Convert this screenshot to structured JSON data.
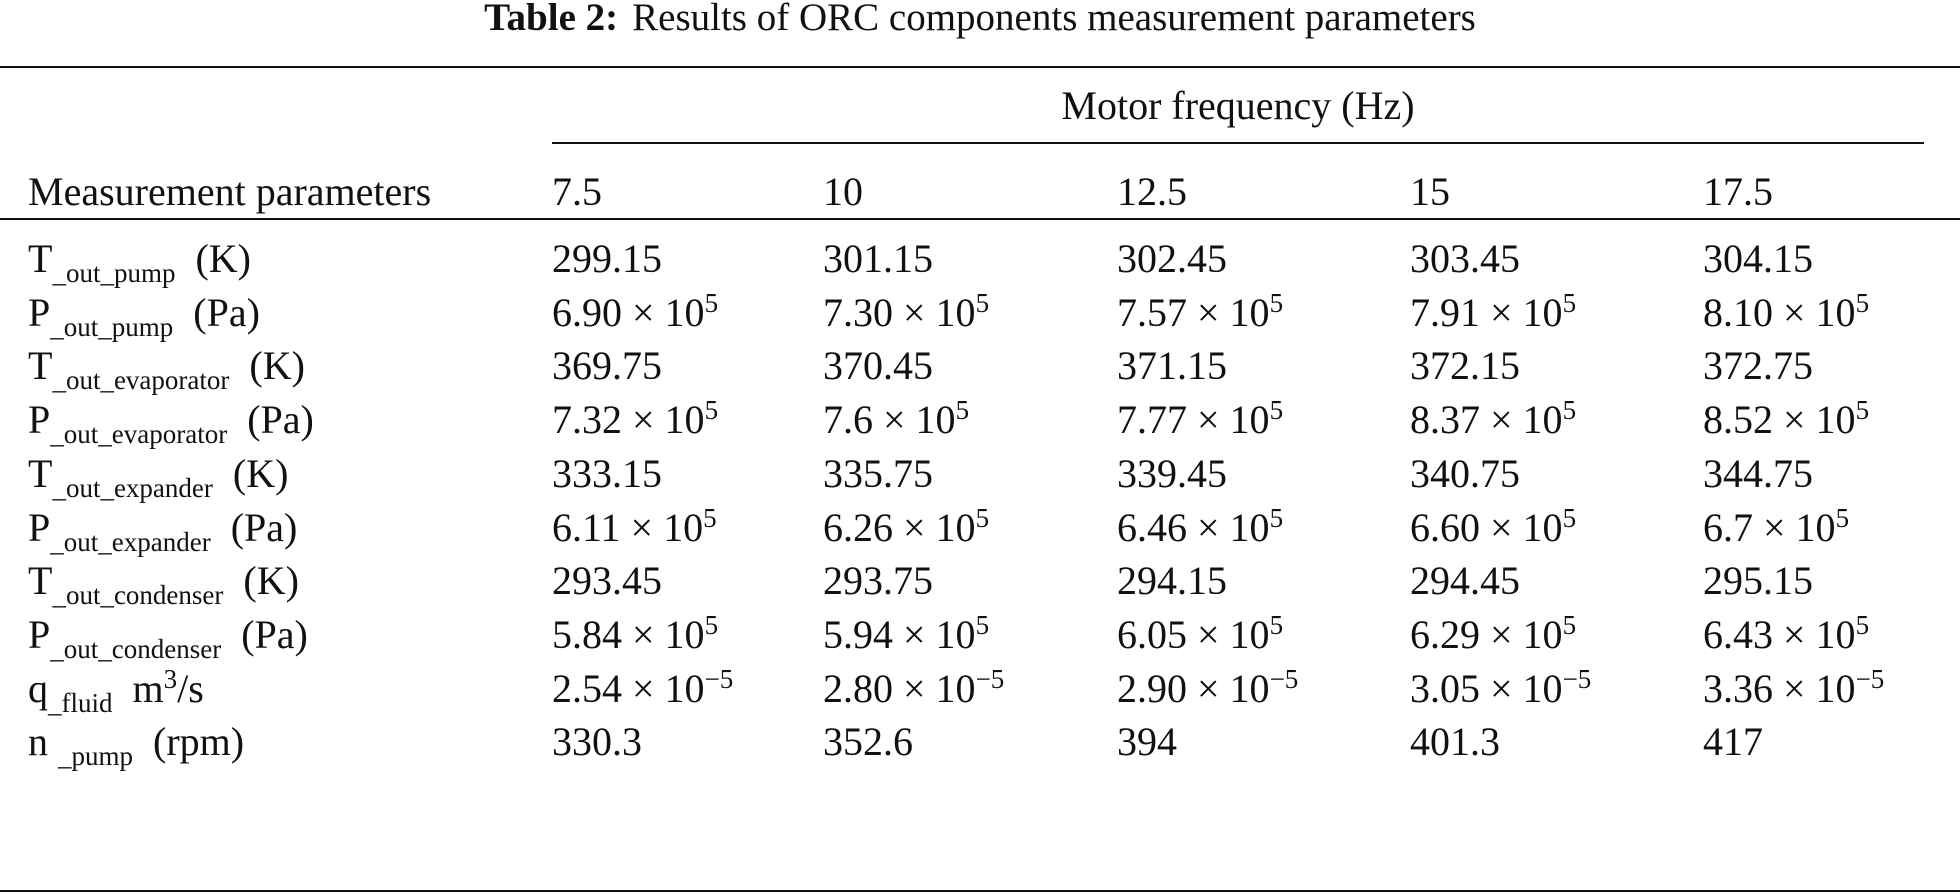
{
  "table": {
    "caption_label": "Table 2:",
    "caption_text": "Results of ORC components measurement parameters",
    "spanning_header": "Motor frequency (Hz)",
    "row_header": "Measurement parameters",
    "frequencies": [
      "7.5",
      "10",
      "12.5",
      "15",
      "17.5"
    ],
    "rows": [
      {
        "symbol": "T",
        "subscript": "_out_pump",
        "unit": "(K)",
        "unit_sup": "",
        "unit_tail": "",
        "values": [
          {
            "m": "299.15",
            "e": ""
          },
          {
            "m": "301.15",
            "e": ""
          },
          {
            "m": "302.45",
            "e": ""
          },
          {
            "m": "303.45",
            "e": ""
          },
          {
            "m": "304.15",
            "e": ""
          }
        ]
      },
      {
        "symbol": "P",
        "subscript": "_out_pump",
        "unit": "(Pa)",
        "unit_sup": "",
        "unit_tail": "",
        "values": [
          {
            "m": "6.90 × 10",
            "e": "5"
          },
          {
            "m": "7.30 × 10",
            "e": "5"
          },
          {
            "m": "7.57 × 10",
            "e": "5"
          },
          {
            "m": "7.91 × 10",
            "e": "5"
          },
          {
            "m": "8.10 × 10",
            "e": "5"
          }
        ]
      },
      {
        "symbol": "T",
        "subscript": "_out_evaporator",
        "unit": "(K)",
        "unit_sup": "",
        "unit_tail": "",
        "values": [
          {
            "m": "369.75",
            "e": ""
          },
          {
            "m": "370.45",
            "e": ""
          },
          {
            "m": "371.15",
            "e": ""
          },
          {
            "m": "372.15",
            "e": ""
          },
          {
            "m": "372.75",
            "e": ""
          }
        ]
      },
      {
        "symbol": "P",
        "subscript": "_out_evaporator",
        "unit": "(Pa)",
        "unit_sup": "",
        "unit_tail": "",
        "values": [
          {
            "m": "7.32 × 10",
            "e": "5"
          },
          {
            "m": "7.6 × 10",
            "e": "5"
          },
          {
            "m": "7.77 × 10",
            "e": "5"
          },
          {
            "m": "8.37 × 10",
            "e": "5"
          },
          {
            "m": "8.52 × 10",
            "e": "5"
          }
        ]
      },
      {
        "symbol": "T",
        "subscript": "_out_expander",
        "unit": "(K)",
        "unit_sup": "",
        "unit_tail": "",
        "values": [
          {
            "m": "333.15",
            "e": ""
          },
          {
            "m": "335.75",
            "e": ""
          },
          {
            "m": "339.45",
            "e": ""
          },
          {
            "m": "340.75",
            "e": ""
          },
          {
            "m": "344.75",
            "e": ""
          }
        ]
      },
      {
        "symbol": "P",
        "subscript": "_out_expander",
        "unit": "(Pa)",
        "unit_sup": "",
        "unit_tail": "",
        "values": [
          {
            "m": "6.11 × 10",
            "e": "5"
          },
          {
            "m": "6.26 × 10",
            "e": "5"
          },
          {
            "m": "6.46 × 10",
            "e": "5"
          },
          {
            "m": "6.60 × 10",
            "e": "5"
          },
          {
            "m": "6.7 × 10",
            "e": "5"
          }
        ]
      },
      {
        "symbol": "T",
        "subscript": "_out_condenser",
        "unit": "(K)",
        "unit_sup": "",
        "unit_tail": "",
        "values": [
          {
            "m": "293.45",
            "e": ""
          },
          {
            "m": "293.75",
            "e": ""
          },
          {
            "m": "294.15",
            "e": ""
          },
          {
            "m": "294.45",
            "e": ""
          },
          {
            "m": "295.15",
            "e": ""
          }
        ]
      },
      {
        "symbol": "P",
        "subscript": "_out_condenser",
        "unit": "(Pa)",
        "unit_sup": "",
        "unit_tail": "",
        "values": [
          {
            "m": "5.84 × 10",
            "e": "5"
          },
          {
            "m": "5.94 × 10",
            "e": "5"
          },
          {
            "m": "6.05 × 10",
            "e": "5"
          },
          {
            "m": "6.29 × 10",
            "e": "5"
          },
          {
            "m": "6.43 × 10",
            "e": "5"
          }
        ]
      },
      {
        "symbol": "q",
        "subscript": "_fluid",
        "unit": "m",
        "unit_sup": "3",
        "unit_tail": "/s",
        "values": [
          {
            "m": "2.54 × 10",
            "e": "−5"
          },
          {
            "m": "2.80 × 10",
            "e": "−5"
          },
          {
            "m": "2.90 × 10",
            "e": "−5"
          },
          {
            "m": "3.05 × 10",
            "e": "−5"
          },
          {
            "m": "3.36 × 10",
            "e": "−5"
          }
        ]
      },
      {
        "symbol": "n ",
        "subscript": "_pump",
        "unit": "(rpm)",
        "unit_sup": "",
        "unit_tail": "",
        "values": [
          {
            "m": "330.3",
            "e": ""
          },
          {
            "m": "352.6",
            "e": ""
          },
          {
            "m": "394",
            "e": ""
          },
          {
            "m": "401.3",
            "e": ""
          },
          {
            "m": "417",
            "e": ""
          }
        ]
      }
    ]
  }
}
